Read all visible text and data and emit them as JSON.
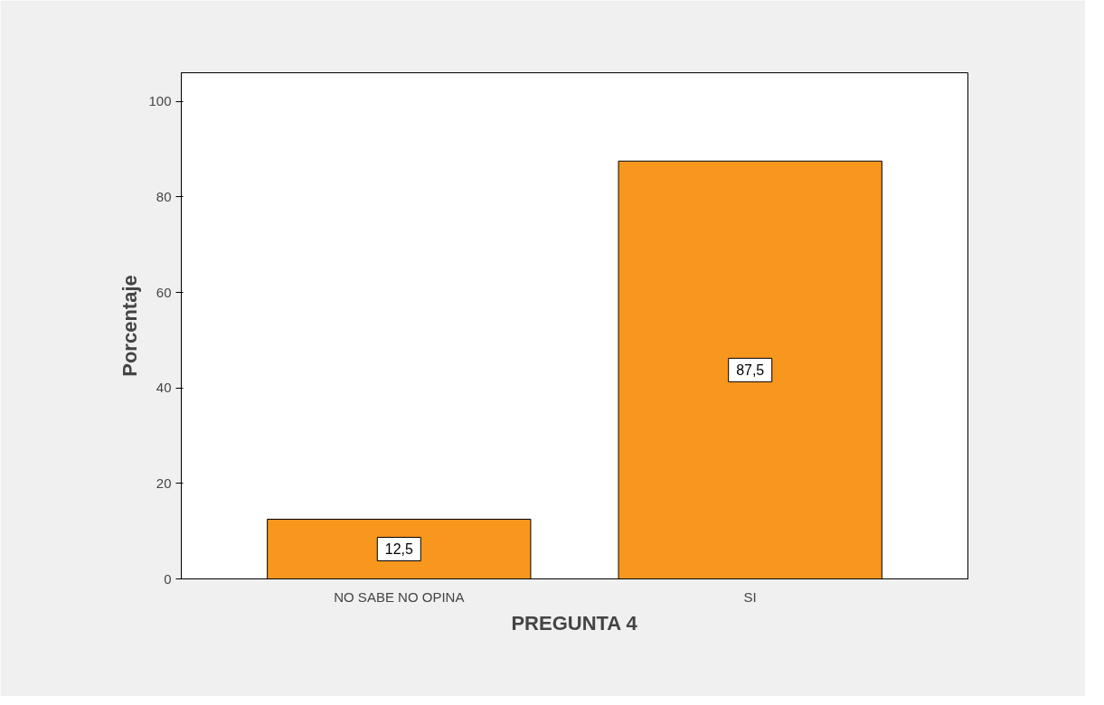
{
  "chart_data": {
    "type": "bar",
    "xlabel": "PREGUNTA 4",
    "ylabel": "Porcentaje",
    "categories": [
      "NO SABE NO OPINA",
      "SI"
    ],
    "values": [
      12.5,
      87.5
    ],
    "value_labels": [
      "12,5",
      "87,5"
    ],
    "color": "#f7971e",
    "ylim": [
      0,
      106
    ],
    "yticks": [
      0,
      20,
      40,
      60,
      80,
      100
    ],
    "grid": false
  }
}
